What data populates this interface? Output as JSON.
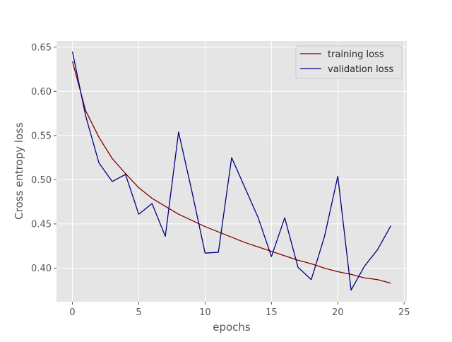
{
  "chart_data": {
    "type": "line",
    "title": "",
    "xlabel": "epochs",
    "ylabel": "Cross entropy loss",
    "xlim": [
      -1.2,
      25.2
    ],
    "ylim": [
      0.362,
      0.657
    ],
    "x_ticks": [
      0,
      5,
      10,
      15,
      20,
      25
    ],
    "y_ticks": [
      0.4,
      0.45,
      0.5,
      0.55,
      0.6,
      0.65
    ],
    "y_tick_labels": [
      "0.40",
      "0.45",
      "0.50",
      "0.55",
      "0.60",
      "0.65"
    ],
    "grid": true,
    "legend_position": "top-right",
    "x": [
      0,
      1,
      2,
      3,
      4,
      5,
      6,
      7,
      8,
      9,
      10,
      11,
      12,
      13,
      14,
      15,
      16,
      17,
      18,
      19,
      20,
      21,
      22,
      23,
      24
    ],
    "series": [
      {
        "name": "training loss",
        "color": "#800000",
        "values": [
          0.634,
          0.578,
          0.548,
          0.524,
          0.507,
          0.491,
          0.479,
          0.47,
          0.461,
          0.454,
          0.447,
          0.441,
          0.435,
          0.429,
          0.424,
          0.419,
          0.414,
          0.409,
          0.405,
          0.4,
          0.396,
          0.393,
          0.389,
          0.387,
          0.383
        ]
      },
      {
        "name": "validation loss",
        "color": "#000080",
        "values": [
          0.645,
          0.572,
          0.519,
          0.498,
          0.506,
          0.461,
          0.473,
          0.436,
          0.554,
          0.487,
          0.417,
          0.418,
          0.525,
          0.491,
          0.457,
          0.413,
          0.457,
          0.401,
          0.387,
          0.436,
          0.504,
          0.375,
          0.402,
          0.421,
          0.448
        ]
      }
    ]
  }
}
